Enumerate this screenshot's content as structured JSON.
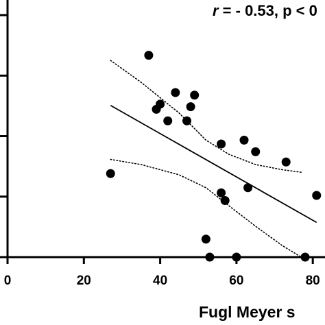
{
  "chart_data": {
    "type": "scatter",
    "title": "",
    "xlabel": "Fugl Meyer s",
    "ylabel": "",
    "xlim": [
      0,
      85
    ],
    "ylim": [
      0,
      1
    ],
    "x_ticks": [
      0,
      20,
      40,
      60,
      80
    ],
    "x_tick_labels": [
      "0",
      "20",
      "40",
      "60",
      "80"
    ],
    "y_ticks": [
      0,
      0.2353,
      0.4706,
      0.7059,
      0.9412
    ],
    "annotation": {
      "r_symbol": "r",
      "text": " = - 0.53, p < 0"
    },
    "grid": false,
    "legend": "none",
    "points": [
      {
        "x": 27,
        "y": 0.325
      },
      {
        "x": 37,
        "y": 0.785
      },
      {
        "x": 39,
        "y": 0.575
      },
      {
        "x": 40,
        "y": 0.595
      },
      {
        "x": 42,
        "y": 0.53
      },
      {
        "x": 44,
        "y": 0.64
      },
      {
        "x": 47,
        "y": 0.53
      },
      {
        "x": 48,
        "y": 0.585
      },
      {
        "x": 49,
        "y": 0.63
      },
      {
        "x": 52,
        "y": 0.07
      },
      {
        "x": 53,
        "y": 0.0
      },
      {
        "x": 56,
        "y": 0.44
      },
      {
        "x": 56,
        "y": 0.25
      },
      {
        "x": 57,
        "y": 0.22
      },
      {
        "x": 60,
        "y": 0.0
      },
      {
        "x": 62,
        "y": 0.455
      },
      {
        "x": 63,
        "y": 0.27
      },
      {
        "x": 65,
        "y": 0.41
      },
      {
        "x": 73,
        "y": 0.37
      },
      {
        "x": 78,
        "y": 0.0
      },
      {
        "x": 81,
        "y": 0.24
      }
    ],
    "regression_line": {
      "x": [
        27,
        81
      ],
      "y": [
        0.59,
        0.135
      ]
    },
    "confidence_band_upper": {
      "x": [
        27,
        35,
        45,
        52,
        58,
        65,
        72,
        77
      ],
      "y": [
        0.765,
        0.68,
        0.56,
        0.455,
        0.4,
        0.36,
        0.34,
        0.33
      ]
    },
    "confidence_band_lower": {
      "x": [
        27,
        35,
        45,
        52,
        58,
        65,
        72,
        77
      ],
      "y": [
        0.38,
        0.36,
        0.32,
        0.27,
        0.2,
        0.12,
        0.045,
        0.0
      ]
    }
  }
}
